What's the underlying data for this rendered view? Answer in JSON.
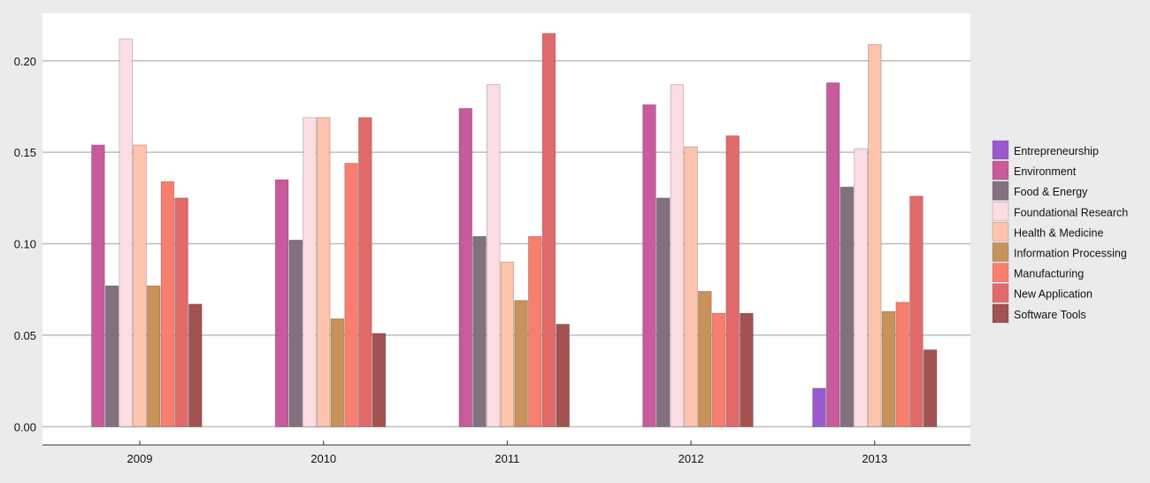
{
  "chart_data": {
    "type": "bar",
    "categories": [
      "2009",
      "2010",
      "2011",
      "2012",
      "2013"
    ],
    "ylim": [
      -0.01,
      0.226
    ],
    "yticks": [
      0.0,
      0.05,
      0.1,
      0.15,
      0.2
    ],
    "ytick_labels": [
      "0.00",
      "0.05",
      "0.10",
      "0.15",
      "0.20"
    ],
    "grid": true,
    "legend_position": "right",
    "title": "",
    "xlabel": "",
    "ylabel": "",
    "series": [
      {
        "name": "Entrepreneurship",
        "color": "#9b59d0",
        "values": [
          0,
          0,
          0,
          0,
          0.021
        ]
      },
      {
        "name": "Environment",
        "color": "#c75b9b",
        "values": [
          0.154,
          0.135,
          0.174,
          0.176,
          0.188
        ]
      },
      {
        "name": "Food & Energy",
        "color": "#82707f",
        "values": [
          0.077,
          0.102,
          0.104,
          0.125,
          0.131
        ]
      },
      {
        "name": "Foundational Research",
        "color": "#fcdde3",
        "values": [
          0.212,
          0.169,
          0.187,
          0.187,
          0.152
        ]
      },
      {
        "name": "Health & Medicine",
        "color": "#fdc3ac",
        "values": [
          0.154,
          0.169,
          0.09,
          0.153,
          0.209
        ]
      },
      {
        "name": "Information Processing",
        "color": "#c8925a",
        "values": [
          0.077,
          0.059,
          0.069,
          0.074,
          0.063
        ]
      },
      {
        "name": "Manufacturing",
        "color": "#fa7e6e",
        "values": [
          0.134,
          0.144,
          0.104,
          0.062,
          0.068
        ]
      },
      {
        "name": "New Application",
        "color": "#e26a6a",
        "values": [
          0.125,
          0.169,
          0.215,
          0.159,
          0.126
        ]
      },
      {
        "name": "Software Tools",
        "color": "#a25252",
        "values": [
          0.067,
          0.051,
          0.056,
          0.062,
          0.042
        ]
      }
    ]
  }
}
